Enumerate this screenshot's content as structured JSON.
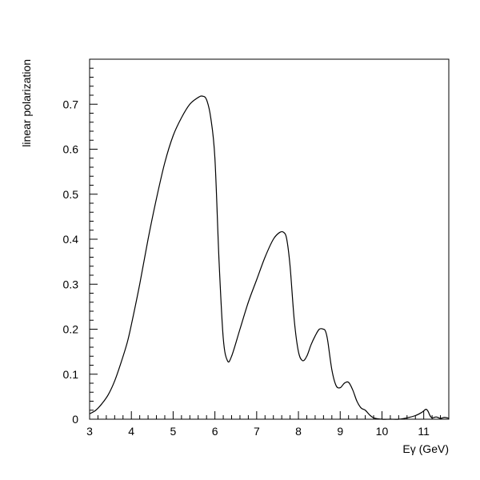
{
  "chart_data": {
    "type": "line",
    "title": "",
    "xlabel": "Eγ (GeV)",
    "ylabel": "linear polarization",
    "xlim": [
      3,
      11.6
    ],
    "ylim": [
      0,
      0.8
    ],
    "x_ticks": [
      3,
      4,
      5,
      6,
      7,
      8,
      9,
      10,
      11
    ],
    "x_tick_labels": [
      "3",
      "4",
      "5",
      "6",
      "7",
      "8",
      "9",
      "10",
      "11"
    ],
    "y_ticks": [
      0,
      0.1,
      0.2,
      0.3,
      0.4,
      0.5,
      0.6,
      0.7
    ],
    "y_tick_labels": [
      "0",
      "0.1",
      "0.2",
      "0.3",
      "0.4",
      "0.5",
      "0.6",
      "0.7"
    ],
    "grid": false,
    "legend": "none",
    "line_color": "#000000",
    "series": [
      {
        "x": [
          3.0,
          3.15,
          3.3,
          3.45,
          3.6,
          3.75,
          3.9,
          4.0,
          4.2,
          4.4,
          4.6,
          4.8,
          5.0,
          5.2,
          5.4,
          5.6,
          5.7,
          5.8,
          5.9,
          6.0,
          6.1,
          6.2,
          6.3,
          6.4,
          6.6,
          6.8,
          7.0,
          7.2,
          7.4,
          7.55,
          7.65,
          7.72,
          7.8,
          7.9,
          8.0,
          8.1,
          8.2,
          8.3,
          8.4,
          8.5,
          8.6,
          8.65,
          8.7,
          8.8,
          8.9,
          9.0,
          9.1,
          9.2,
          9.3,
          9.4,
          9.5,
          9.6,
          9.7,
          9.8,
          10.0,
          10.2,
          10.4,
          10.6,
          10.8,
          10.95,
          11.05,
          11.1,
          11.15,
          11.2,
          11.3,
          11.4,
          11.5,
          11.6
        ],
        "y": [
          0.012,
          0.02,
          0.035,
          0.055,
          0.085,
          0.125,
          0.17,
          0.21,
          0.3,
          0.4,
          0.49,
          0.57,
          0.63,
          0.67,
          0.7,
          0.715,
          0.718,
          0.71,
          0.67,
          0.58,
          0.35,
          0.18,
          0.13,
          0.14,
          0.2,
          0.26,
          0.31,
          0.36,
          0.4,
          0.415,
          0.415,
          0.4,
          0.34,
          0.22,
          0.15,
          0.13,
          0.14,
          0.165,
          0.185,
          0.2,
          0.2,
          0.195,
          0.175,
          0.11,
          0.075,
          0.07,
          0.08,
          0.082,
          0.065,
          0.04,
          0.025,
          0.02,
          0.01,
          0.003,
          0.0,
          0.0,
          0.0,
          0.003,
          0.008,
          0.015,
          0.022,
          0.018,
          0.008,
          0.003,
          0.005,
          0.002,
          0.004,
          0.002
        ]
      }
    ]
  }
}
